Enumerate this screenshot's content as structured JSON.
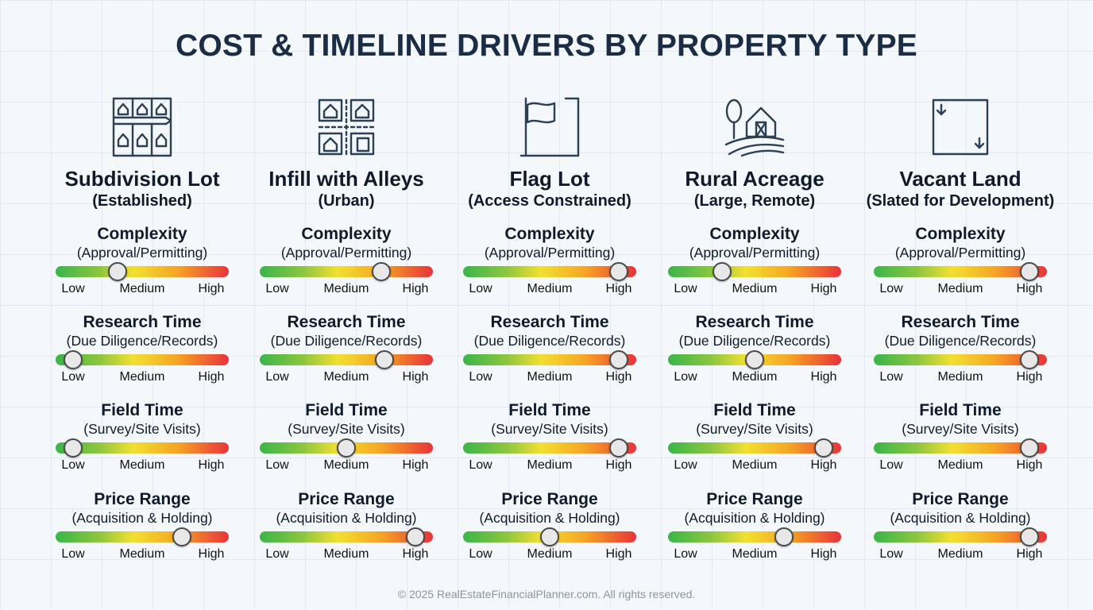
{
  "title": "COST & TIMELINE DRIVERS BY PROPERTY TYPE",
  "footer": "© 2025 RealEstateFinancialPlanner.com. All rights reserved.",
  "colors": {
    "low": "#39b54a",
    "medium": "#f2e030",
    "high": "#e8333a",
    "title": "#1a2d45"
  },
  "scale": {
    "low": "Low",
    "medium": "Medium",
    "high": "High"
  },
  "columns": [
    {
      "icon": "subdivision-lots-icon",
      "title": "Subdivision Lot",
      "subtitle": "(Established)",
      "metrics": [
        {
          "title": "Complexity",
          "subtitle": "(Approval/Permitting)",
          "level": 0.36
        },
        {
          "title": "Research Time",
          "subtitle": "(Due Diligence/Records)",
          "level": 0.1
        },
        {
          "title": "Field Time",
          "subtitle": "(Survey/Site Visits)",
          "level": 0.1
        },
        {
          "title": "Price Range",
          "subtitle": "(Acquisition & Holding)",
          "level": 0.73
        }
      ]
    },
    {
      "icon": "infill-alley-icon",
      "title": "Infill with Alleys",
      "subtitle": "(Urban)",
      "metrics": [
        {
          "title": "Complexity",
          "subtitle": "(Approval/Permitting)",
          "level": 0.7
        },
        {
          "title": "Research Time",
          "subtitle": "(Due Diligence/Records)",
          "level": 0.72
        },
        {
          "title": "Field Time",
          "subtitle": "(Survey/Site Visits)",
          "level": 0.5
        },
        {
          "title": "Price Range",
          "subtitle": "(Acquisition & Holding)",
          "level": 0.9
        }
      ]
    },
    {
      "icon": "flag-icon",
      "title": "Flag Lot",
      "subtitle": "(Access Constrained)",
      "metrics": [
        {
          "title": "Complexity",
          "subtitle": "(Approval/Permitting)",
          "level": 0.9
        },
        {
          "title": "Research Time",
          "subtitle": "(Due Diligence/Records)",
          "level": 0.9
        },
        {
          "title": "Field Time",
          "subtitle": "(Survey/Site Visits)",
          "level": 0.9
        },
        {
          "title": "Price Range",
          "subtitle": "(Acquisition & Holding)",
          "level": 0.5
        }
      ]
    },
    {
      "icon": "rural-barn-icon",
      "title": "Rural Acreage",
      "subtitle": "(Large, Remote)",
      "metrics": [
        {
          "title": "Complexity",
          "subtitle": "(Approval/Permitting)",
          "level": 0.31
        },
        {
          "title": "Research Time",
          "subtitle": "(Due Diligence/Records)",
          "level": 0.5
        },
        {
          "title": "Field Time",
          "subtitle": "(Survey/Site Visits)",
          "level": 0.9
        },
        {
          "title": "Price Range",
          "subtitle": "(Acquisition & Holding)",
          "level": 0.67
        }
      ]
    },
    {
      "icon": "vacant-land-icon",
      "title": "Vacant Land",
      "subtitle": "(Slated for Development)",
      "metrics": [
        {
          "title": "Complexity",
          "subtitle": "(Approval/Permitting)",
          "level": 0.9
        },
        {
          "title": "Research Time",
          "subtitle": "(Due Diligence/Records)",
          "level": 0.9
        },
        {
          "title": "Field Time",
          "subtitle": "(Survey/Site Visits)",
          "level": 0.9
        },
        {
          "title": "Price Range",
          "subtitle": "(Acquisition & Holding)",
          "level": 0.9
        }
      ]
    }
  ]
}
